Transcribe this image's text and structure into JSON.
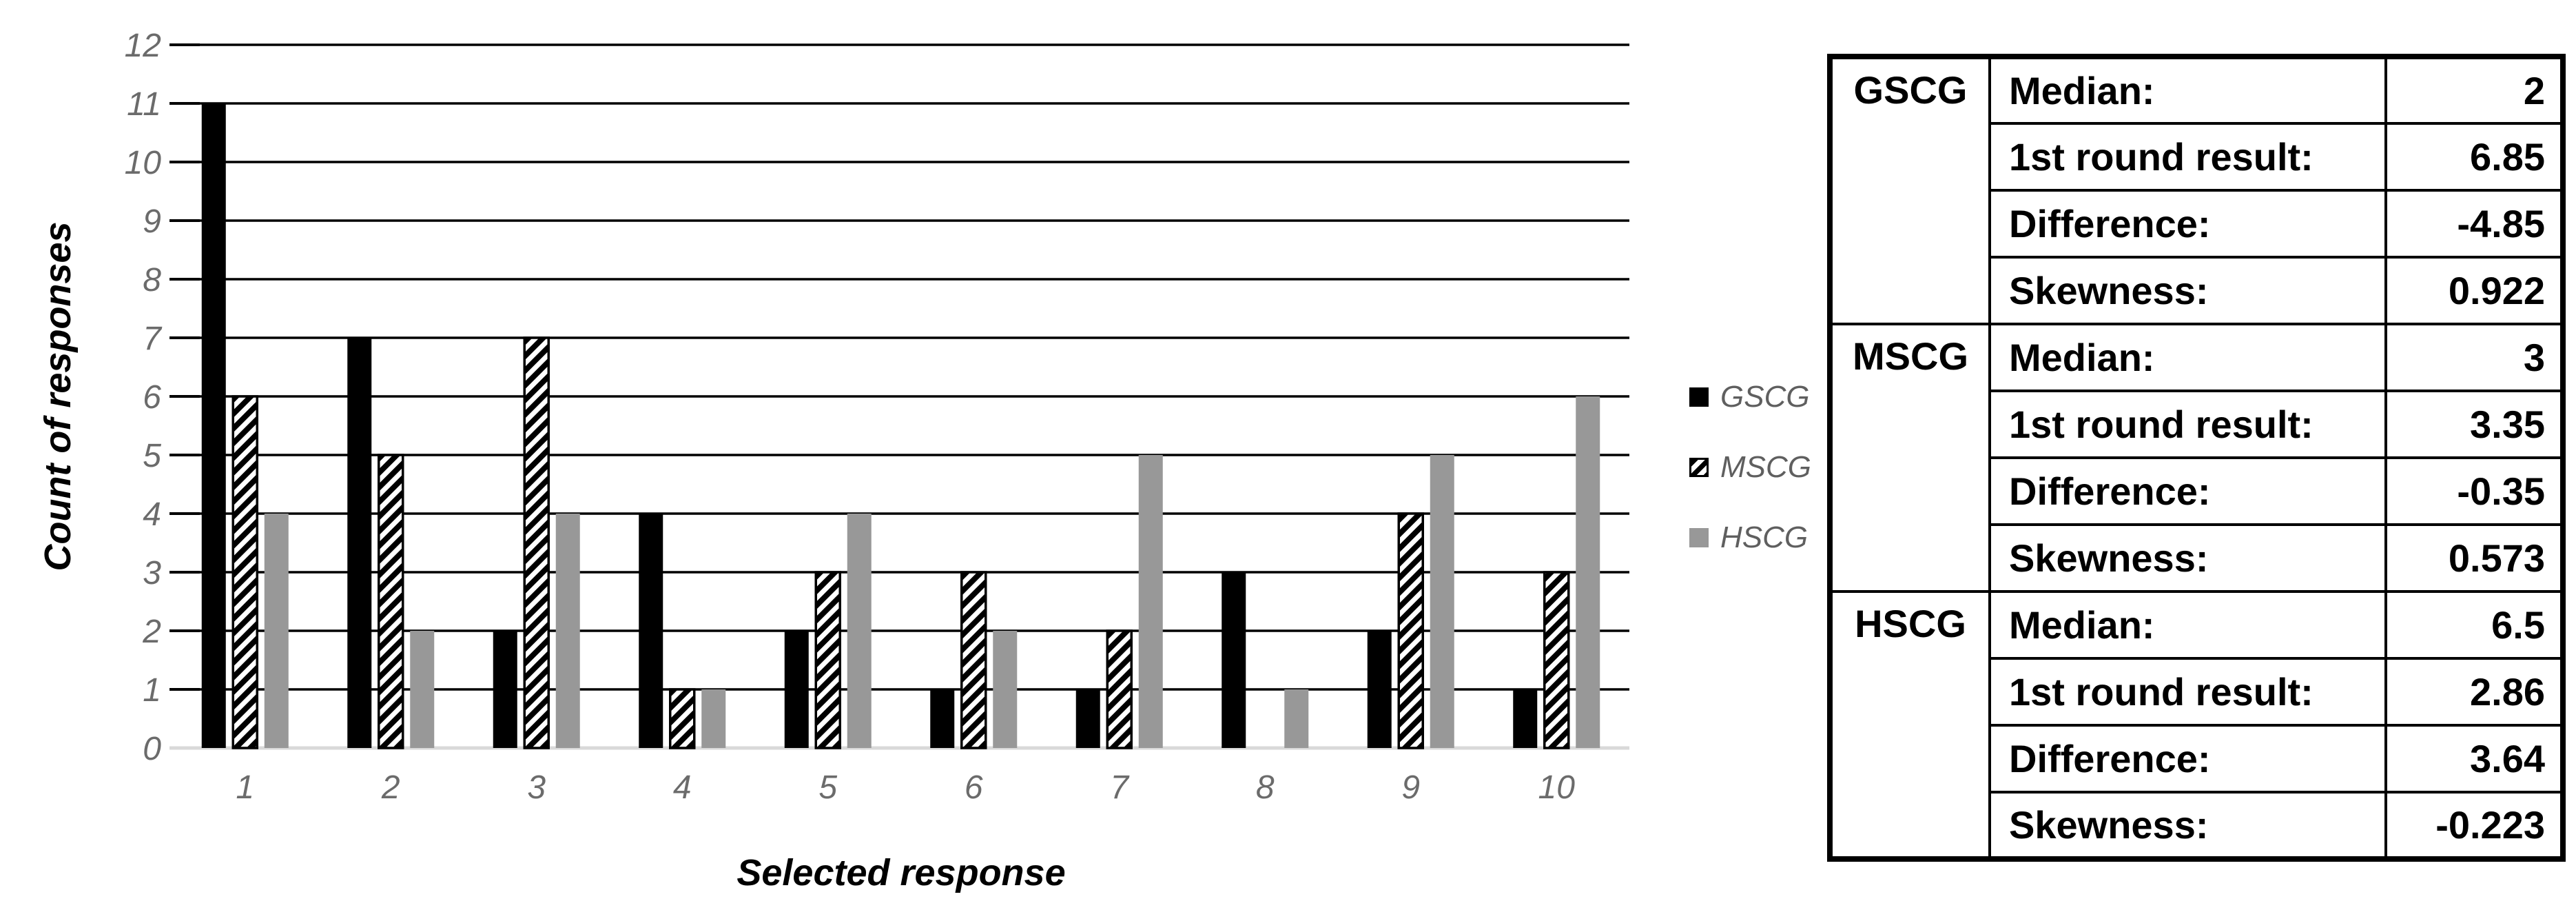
{
  "chart_data": {
    "type": "bar",
    "title": "",
    "xlabel": "Selected response",
    "ylabel": "Count of responses",
    "categories": [
      "1",
      "2",
      "3",
      "4",
      "5",
      "6",
      "7",
      "8",
      "9",
      "10"
    ],
    "series": [
      {
        "name": "GSCG",
        "style": "solid-black",
        "values": [
          11,
          7,
          2,
          4,
          2,
          1,
          1,
          3,
          2,
          1
        ]
      },
      {
        "name": "MSCG",
        "style": "diagonal-hatch",
        "values": [
          6,
          5,
          7,
          1,
          3,
          3,
          2,
          0,
          4,
          3
        ]
      },
      {
        "name": "HSCG",
        "style": "solid-gray",
        "values": [
          4,
          2,
          4,
          1,
          4,
          2,
          5,
          1,
          5,
          6
        ]
      }
    ],
    "ylim": [
      0,
      12
    ],
    "ytick_step": 1,
    "grid": "horizontal-black-lines",
    "legend_position": "right-of-plot"
  },
  "colors": {
    "bar_black": "#000000",
    "bar_gray": "#989898",
    "hatch_foreground": "#000000",
    "hatch_background": "#ffffff",
    "gridline": "#000000",
    "baseline": "#d9d9d9",
    "tick_text": "#6b6b6b",
    "legend_text": "#5f5f5f",
    "table_text": "#000000",
    "table_border": "#000000"
  },
  "table": {
    "groups": [
      {
        "name": "GSCG",
        "rows": [
          {
            "label": "Median:",
            "value": "2"
          },
          {
            "label": "1st round result:",
            "value": "6.85"
          },
          {
            "label": "Difference:",
            "value": "-4.85"
          },
          {
            "label": "Skewness:",
            "value": "0.922"
          }
        ]
      },
      {
        "name": "MSCG",
        "rows": [
          {
            "label": "Median:",
            "value": "3"
          },
          {
            "label": "1st round result:",
            "value": "3.35"
          },
          {
            "label": "Difference:",
            "value": "-0.35"
          },
          {
            "label": "Skewness:",
            "value": "0.573"
          }
        ]
      },
      {
        "name": "HSCG",
        "rows": [
          {
            "label": "Median:",
            "value": "6.5"
          },
          {
            "label": "1st round result:",
            "value": "2.86"
          },
          {
            "label": "Difference:",
            "value": "3.64"
          },
          {
            "label": "Skewness:",
            "value": "-0.223"
          }
        ]
      }
    ]
  }
}
